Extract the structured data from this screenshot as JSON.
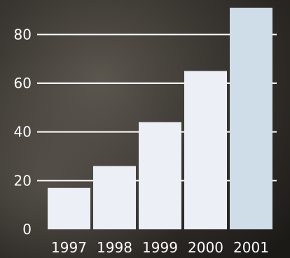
{
  "chart_data": {
    "type": "bar",
    "title": "",
    "xlabel": "",
    "ylabel": "",
    "categories": [
      "1997",
      "1998",
      "1999",
      "2000",
      "2001"
    ],
    "values": [
      17,
      26,
      44,
      65,
      91
    ],
    "ylim": [
      0,
      91
    ],
    "yticks": [
      "0",
      "20",
      "40",
      "60",
      "80"
    ],
    "grid": true,
    "colors": {
      "bar": "#eceff5",
      "bar_highlight": "#cfdde8",
      "grid": "#ffffff",
      "text": "#ffffff",
      "background_dark": "#1f1d1a",
      "background_mid": "#4a4640"
    },
    "highlight_index": 4
  }
}
